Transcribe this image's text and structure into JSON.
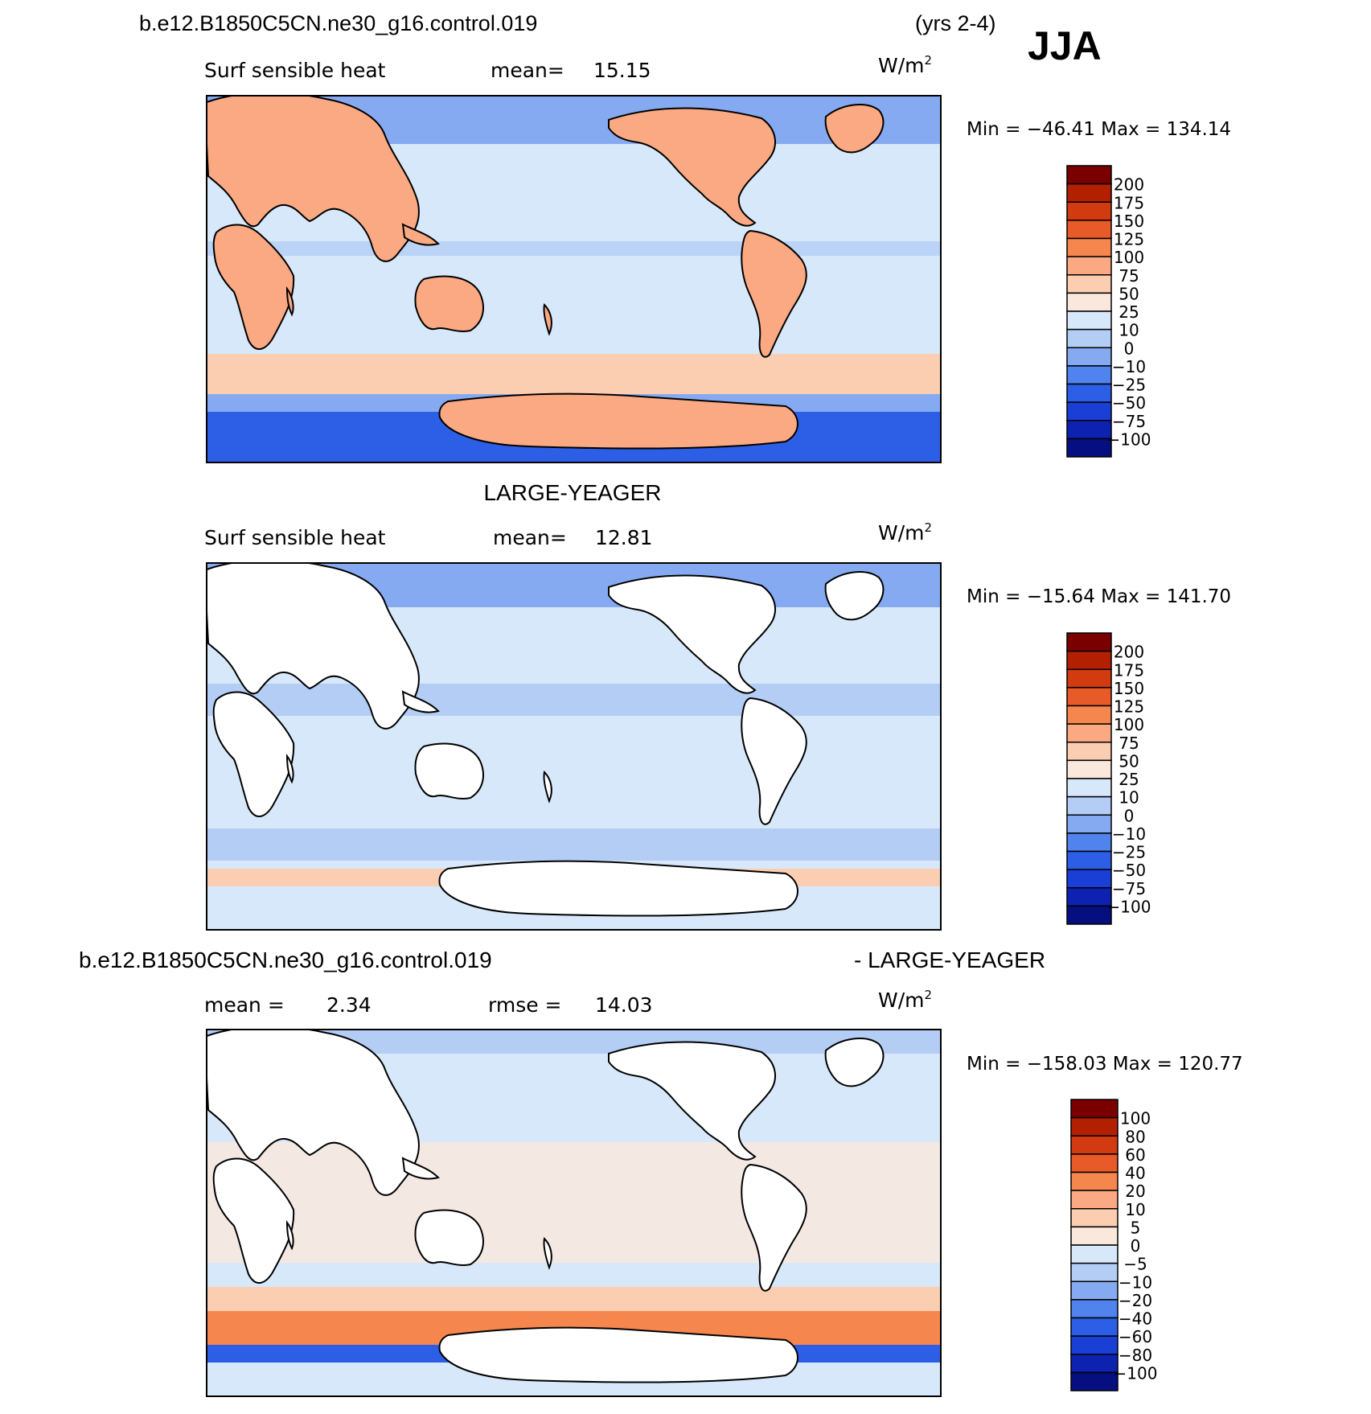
{
  "header": {
    "case_name": "b.e12.B1850C5CN.ne30_g16.control.019",
    "years": "(yrs 2-4)",
    "season": "JJA"
  },
  "panels": [
    {
      "title_left": "Surf sensible heat",
      "title_mid": "mean=",
      "title_mid_value": "15.15",
      "units": "W/m",
      "units_sup": "2",
      "minmax": "Min = −46.41 Max = 134.14"
    },
    {
      "heading": "LARGE-YEAGER",
      "title_left": "Surf sensible heat",
      "title_mid": "mean=",
      "title_mid_value": "12.81",
      "units": "W/m",
      "units_sup": "2",
      "minmax": "Min = −15.64 Max = 141.70"
    },
    {
      "heading_left": "b.e12.B1850C5CN.ne30_g16.control.019",
      "heading_right": "- LARGE-YEAGER",
      "title_left": "mean =",
      "title_left_value": "2.34",
      "title_mid": "rmse =",
      "title_mid_value": "14.03",
      "units": "W/m",
      "units_sup": "2",
      "minmax": "Min = −158.03 Max = 120.77"
    }
  ],
  "chart_data": [
    {
      "type": "heatmap",
      "subtype": "global filled contour map",
      "variable": "Surf sensible heat",
      "units": "W/m²",
      "mean": 15.15,
      "min": -46.41,
      "max": 134.14,
      "colorbar_levels": [
        "200",
        "175",
        "150",
        "125",
        "100",
        "75",
        "50",
        "25",
        "10",
        "0",
        "−10",
        "−25",
        "−50",
        "−75",
        "−100"
      ],
      "colorbar_colors": [
        "#7a0000",
        "#b22000",
        "#d23a10",
        "#e85a28",
        "#f5864e",
        "#faa982",
        "#fbcdb1",
        "#fbe8dc",
        "#d6e8fa",
        "#b3cdf5",
        "#86aaf2",
        "#5183ee",
        "#2c5fe6",
        "#1a3fd6",
        "#0d22b0",
        "#050f80"
      ]
    },
    {
      "type": "heatmap",
      "subtype": "global filled contour map (ocean only)",
      "variable": "Surf sensible heat",
      "units": "W/m²",
      "mean": 12.81,
      "min": -15.64,
      "max": 141.7,
      "colorbar_levels": [
        "200",
        "175",
        "150",
        "125",
        "100",
        "75",
        "50",
        "25",
        "10",
        "0",
        "−10",
        "−25",
        "−50",
        "−75",
        "−100"
      ],
      "colorbar_colors": [
        "#7a0000",
        "#b22000",
        "#d23a10",
        "#e85a28",
        "#f5864e",
        "#faa982",
        "#fbcdb1",
        "#fbe8dc",
        "#d6e8fa",
        "#b3cdf5",
        "#86aaf2",
        "#5183ee",
        "#2c5fe6",
        "#1a3fd6",
        "#0d22b0",
        "#050f80"
      ]
    },
    {
      "type": "heatmap",
      "subtype": "difference map",
      "units": "W/m²",
      "mean": 2.34,
      "rmse": 14.03,
      "min": -158.03,
      "max": 120.77,
      "colorbar_levels": [
        "100",
        "80",
        "60",
        "40",
        "20",
        "10",
        "5",
        "0",
        "−5",
        "−10",
        "−20",
        "−40",
        "−60",
        "−80",
        "−100"
      ],
      "colorbar_colors": [
        "#7a0000",
        "#b22000",
        "#d23a10",
        "#e85a28",
        "#f5864e",
        "#faa982",
        "#fbcdb1",
        "#fbe8dc",
        "#d6e8fa",
        "#b3cdf5",
        "#86aaf2",
        "#5183ee",
        "#2c5fe6",
        "#1a3fd6",
        "#0d22b0",
        "#050f80"
      ]
    }
  ]
}
